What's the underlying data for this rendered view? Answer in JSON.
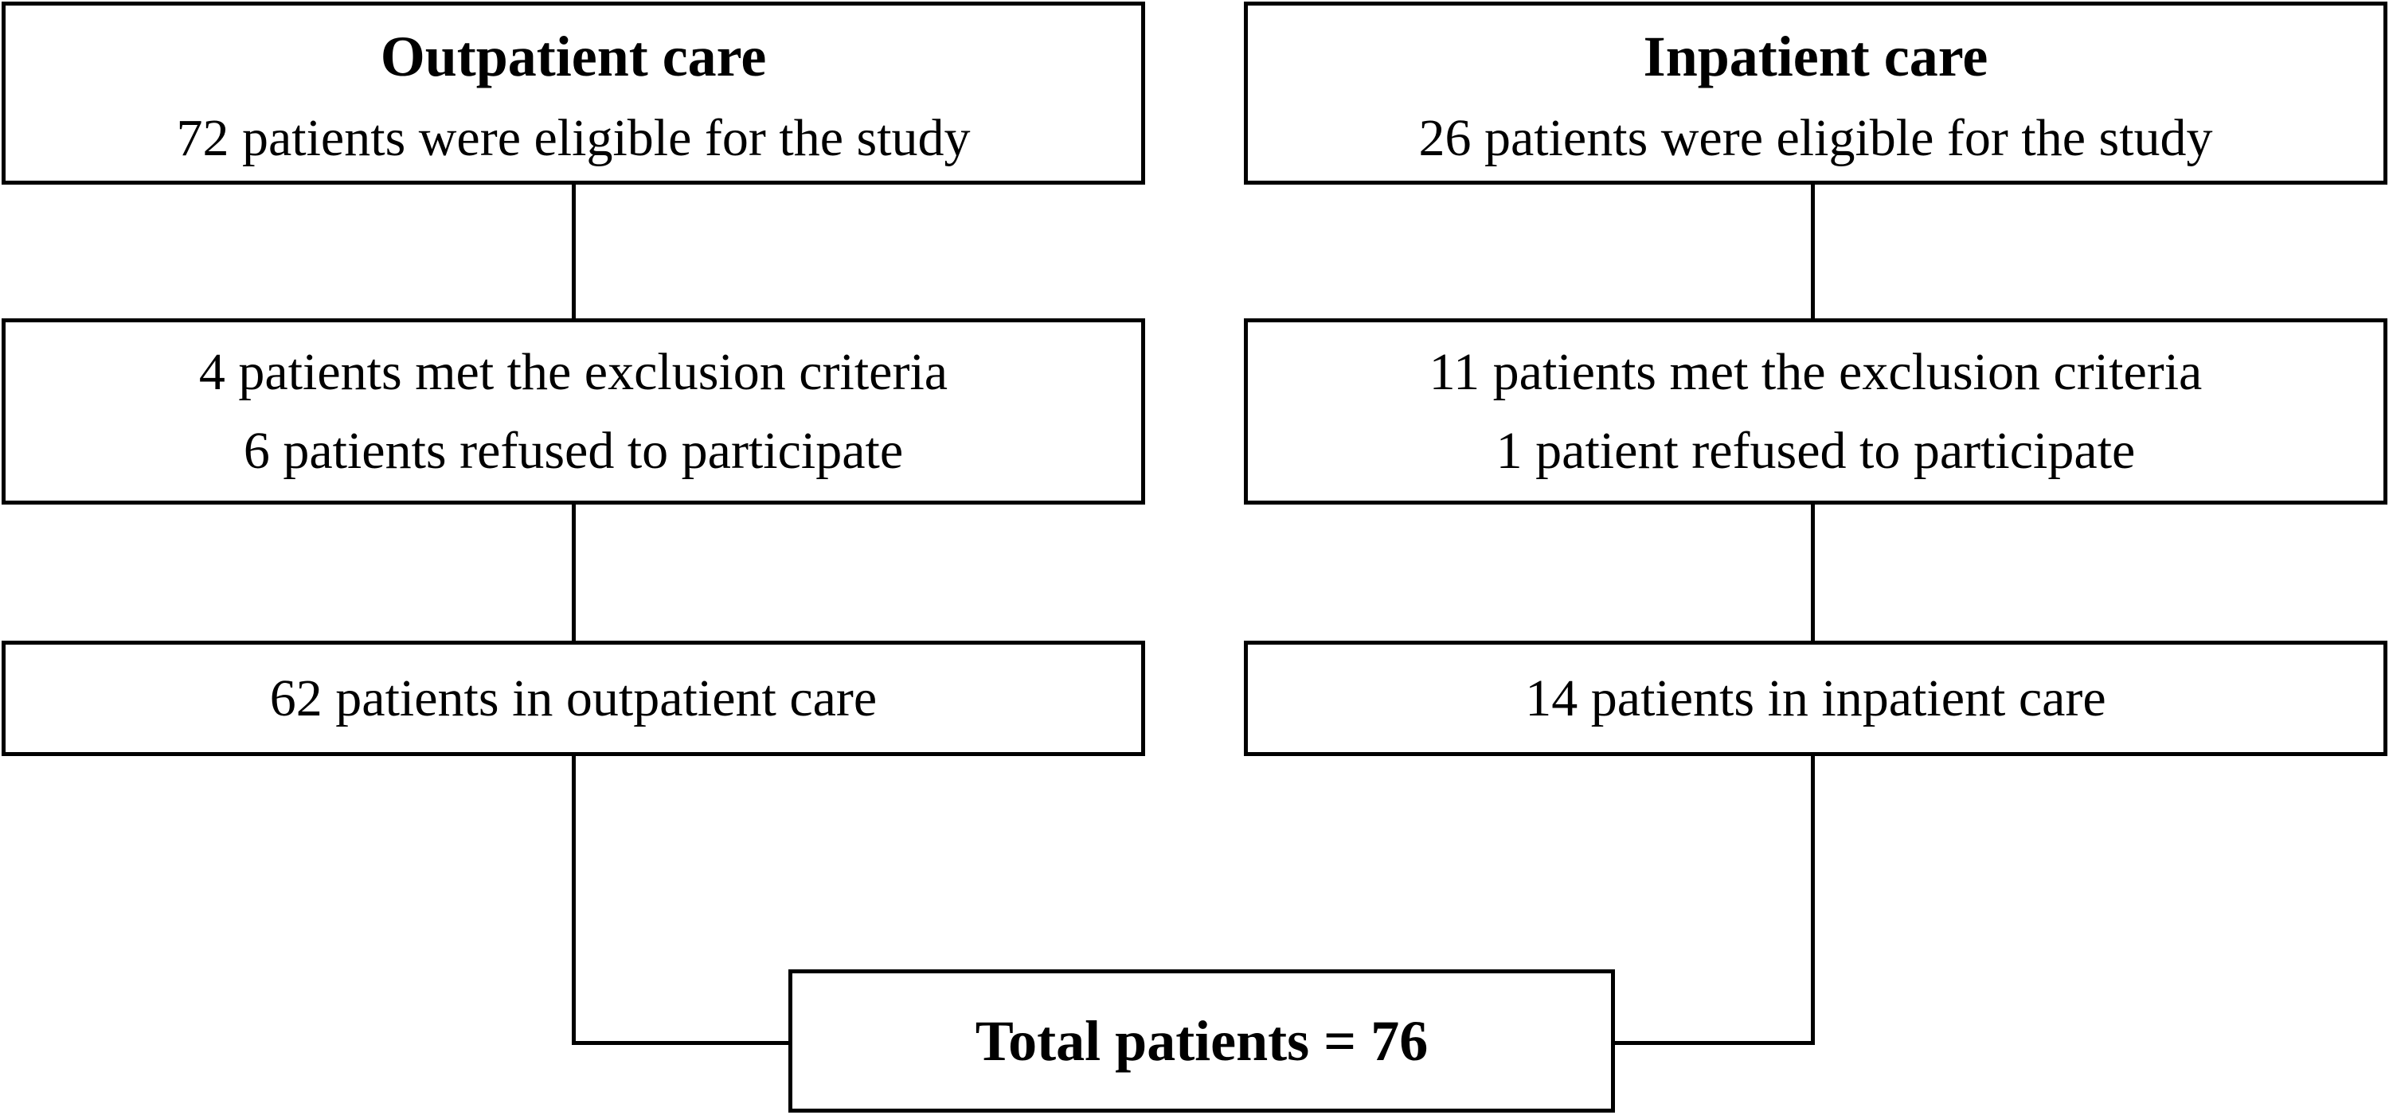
{
  "figure": {
    "outpatient": {
      "title": "Outpatient care",
      "eligible": "72 patients were eligible for the study",
      "exclusion_line1": "4 patients met the exclusion criteria",
      "exclusion_line2": "6 patients refused to participate",
      "included": "62 patients in outpatient care"
    },
    "inpatient": {
      "title": "Inpatient care",
      "eligible": "26 patients were eligible for the study",
      "exclusion_line1": "11 patients met the exclusion criteria",
      "exclusion_line2": "1 patient refused to participate",
      "included": "14 patients in inpatient care"
    },
    "total": {
      "label": "Total patients = 76"
    }
  },
  "colors": {
    "line": "#000000",
    "background": "#ffffff",
    "text": "#000000"
  }
}
